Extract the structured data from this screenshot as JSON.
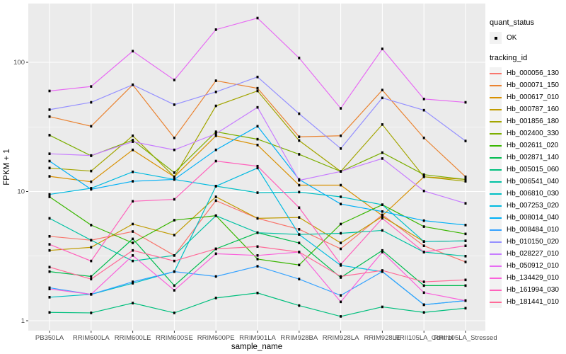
{
  "figure": {
    "bg": "#FFFFFF",
    "panel_bg": "#EBEBEB",
    "grid_color": "#FFFFFF",
    "tick_color": "#333333",
    "tick_label_color": "#4D4D4D",
    "axis_title_color": "#000000",
    "key_bg": "#F2F2F2",
    "marker_color": "#000000"
  },
  "axes": {
    "x_title": "sample_name",
    "y_title": "FPKM + 1",
    "y_tick_labels": [
      "1",
      "10",
      "100"
    ],
    "y_tick_values": [
      1,
      10,
      100
    ],
    "y_minor_values": [
      3.1623,
      31.623
    ]
  },
  "legend": {
    "quant_title": "quant_status",
    "quant_items": [
      {
        "label": "OK",
        "marker": "black-square-point"
      }
    ],
    "tracking_title": "tracking_id"
  },
  "chart_data": {
    "type": "line",
    "title": "",
    "xlabel": "sample_name",
    "ylabel": "FPKM + 1",
    "y_scale": "log10",
    "ylim": [
      0.84,
      285
    ],
    "grid": true,
    "legend_position": "right",
    "quant_status": "OK",
    "categories": [
      "PB350LA",
      "RRIM600LA",
      "RRIM600LE",
      "RRIM600SE",
      "RRIM600PE",
      "RRIM901LA",
      "RRIM928BA",
      "RRIM928LA",
      "RRIM928LE",
      "RRII105LA_Control",
      "RRII105LA_Stressed"
    ],
    "series": [
      {
        "name": "Hb_000056_130",
        "color": "#F8766D",
        "values": [
          4.5,
          4.2,
          4.9,
          3.2,
          8.5,
          6.2,
          5.1,
          3.6,
          6.6,
          3.8,
          2.85
        ]
      },
      {
        "name": "Hb_000071_150",
        "color": "#EA8331",
        "values": [
          38,
          32,
          67,
          26,
          72,
          63,
          26.5,
          27,
          61,
          26,
          13
        ]
      },
      {
        "name": "Hb_000617_010",
        "color": "#D89000",
        "values": [
          13.1,
          11.9,
          21,
          13,
          27,
          22.9,
          11.2,
          11.2,
          6.5,
          13,
          12.4
        ]
      },
      {
        "name": "Hb_000787_160",
        "color": "#C09B00",
        "values": [
          3.5,
          3.7,
          5.6,
          4.6,
          9.1,
          6.2,
          6.3,
          4.0,
          6.4,
          4.1,
          4.15
        ]
      },
      {
        "name": "Hb_001856_180",
        "color": "#A3A500",
        "values": [
          15.2,
          14.4,
          27,
          13,
          46,
          60,
          24.8,
          14.3,
          33,
          13,
          12
        ]
      },
      {
        "name": "Hb_002400_330",
        "color": "#7CAE00",
        "values": [
          27.3,
          18.9,
          25,
          14,
          29,
          25.4,
          19.4,
          14.3,
          20,
          13.5,
          12.4
        ]
      },
      {
        "name": "Hb_002611_020",
        "color": "#39B600",
        "values": [
          9.1,
          5.5,
          4.0,
          6.0,
          6.5,
          3.0,
          2.7,
          5.6,
          7.9,
          5.35,
          4.7
        ]
      },
      {
        "name": "Hb_002871_140",
        "color": "#00BB4E",
        "values": [
          2.4,
          2.2,
          4.3,
          1.87,
          3.6,
          4.8,
          4.0,
          2.16,
          3.5,
          1.87,
          1.87
        ]
      },
      {
        "name": "Hb_005015_060",
        "color": "#00BF7D",
        "values": [
          1.16,
          1.15,
          1.37,
          1.15,
          1.5,
          1.64,
          1.31,
          1.08,
          1.28,
          1.16,
          1.25
        ]
      },
      {
        "name": "Hb_006541_040",
        "color": "#00C1A3",
        "values": [
          6.2,
          4.2,
          2.9,
          3.2,
          6.5,
          4.8,
          4.65,
          4.75,
          5.0,
          3.4,
          3.16
        ]
      },
      {
        "name": "Hb_006810_030",
        "color": "#00BFC4",
        "values": [
          1.52,
          1.6,
          1.95,
          2.4,
          11.0,
          9.8,
          9.9,
          9.1,
          7.9,
          4.1,
          4.15
        ]
      },
      {
        "name": "Hb_007253_020",
        "color": "#00BAE0",
        "values": [
          9.5,
          10.6,
          14.2,
          12.4,
          11.0,
          15.2,
          4.65,
          2.68,
          2.4,
          1.33,
          1.43
        ]
      },
      {
        "name": "Hb_008014_040",
        "color": "#00B0F6",
        "values": [
          17.2,
          10.4,
          12.0,
          12.4,
          21,
          32,
          12.4,
          8.0,
          7.0,
          5.95,
          5.5
        ]
      },
      {
        "name": "Hb_008484_010",
        "color": "#35A2FF",
        "values": [
          1.8,
          1.6,
          2.0,
          2.4,
          2.2,
          2.64,
          2.1,
          1.57,
          2.4,
          1.33,
          1.43
        ]
      },
      {
        "name": "Hb_010150_020",
        "color": "#9590FF",
        "values": [
          43,
          49,
          67,
          47,
          59,
          77,
          40,
          21.5,
          53,
          42.6,
          24.6
        ]
      },
      {
        "name": "Hb_028227_010",
        "color": "#C77CFF",
        "values": [
          19.6,
          19,
          24.3,
          21,
          28,
          44.8,
          12.2,
          14.3,
          18,
          10.1,
          8.1
        ]
      },
      {
        "name": "Hb_050912_010",
        "color": "#E76BF3",
        "values": [
          60,
          65,
          122,
          73,
          179,
          220,
          108,
          44,
          127,
          52,
          49
        ]
      },
      {
        "name": "Hb_134429_010",
        "color": "#FA62DB",
        "values": [
          1.76,
          1.6,
          3.2,
          1.72,
          3.3,
          3.2,
          3.4,
          1.4,
          3.4,
          1.65,
          1.43
        ]
      },
      {
        "name": "Hb_161994_030",
        "color": "#FF62BC",
        "values": [
          3.9,
          2.9,
          8.4,
          8.7,
          17.2,
          15.7,
          7.5,
          2.73,
          6.2,
          3.4,
          3.8
        ]
      },
      {
        "name": "Hb_181441_010",
        "color": "#FF6A98",
        "values": [
          2.6,
          2.1,
          3.5,
          2.9,
          3.6,
          3.75,
          3.4,
          2.2,
          2.45,
          2.0,
          2.07
        ]
      }
    ]
  }
}
